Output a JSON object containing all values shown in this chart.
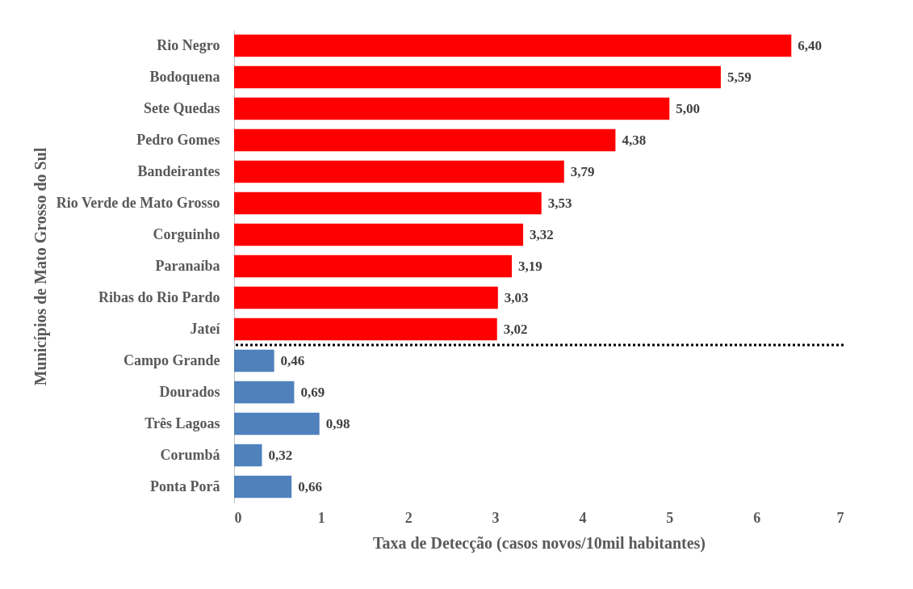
{
  "chart_data": {
    "type": "bar",
    "orientation": "horizontal",
    "xlabel": "Taxa de Detecção (casos novos/10mil habitantes)",
    "ylabel": "Municípios de Mato Grosso do Sul",
    "categories": [
      "Rio Negro",
      "Bodoquena",
      "Sete Quedas",
      "Pedro Gomes",
      "Bandeirantes",
      "Rio Verde de Mato Grosso",
      "Corguinho",
      "Paranaíba",
      "Ribas do Rio Pardo ",
      "Jateí",
      "Campo Grande",
      "Dourados",
      "Três Lagoas",
      "Corumbá",
      "Ponta Porã"
    ],
    "values": [
      6.4,
      5.59,
      5.0,
      4.38,
      3.79,
      3.53,
      3.32,
      3.19,
      3.03,
      3.02,
      0.46,
      0.69,
      0.98,
      0.32,
      0.66
    ],
    "colors": [
      "#ff0000",
      "#ff0000",
      "#ff0000",
      "#ff0000",
      "#ff0000",
      "#ff0000",
      "#ff0000",
      "#ff0000",
      "#ff0000",
      "#ff0000",
      "#4f81bd",
      "#4f81bd",
      "#4f81bd",
      "#4f81bd",
      "#4f81bd"
    ],
    "value_labels": [
      "6,40",
      "5,59",
      "5,00",
      "4,38",
      "3,79",
      "3,53",
      "3,32",
      "3,19",
      "3,03",
      "3,02",
      "0,46",
      "0,69",
      "0,98",
      "0,32",
      "0,66"
    ],
    "xlim": [
      0,
      7
    ],
    "xticks": [
      0,
      1,
      2,
      3,
      4,
      5,
      6,
      7
    ],
    "grid": false,
    "ref_lines": [
      {
        "axis": "y",
        "value": "Jateí",
        "color": "#000000",
        "line_style": "dotted"
      }
    ]
  }
}
